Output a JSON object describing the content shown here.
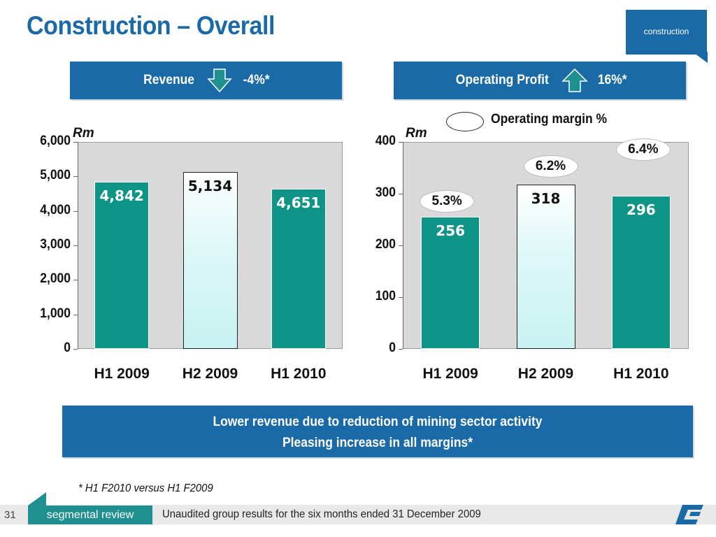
{
  "title": "Construction – Overall",
  "section_tag": "construction",
  "revenue_header": {
    "label": "Revenue",
    "change": "-4%*",
    "arrow_icon": "down-arrow-icon"
  },
  "op_header": {
    "label": "Operating Profit",
    "change": "16%*",
    "arrow_icon": "up-arrow-icon"
  },
  "legend": {
    "label": "Operating margin %"
  },
  "summary": {
    "line1": "Lower revenue due to reduction of mining sector activity",
    "line2": "Pleasing increase in all margins*"
  },
  "footnote": "* H1 F2010 versus H1 F2009",
  "footer": {
    "page": "31",
    "tab": "segmental review",
    "text": "Unaudited group results for the six months ended 31 December 2009"
  },
  "colors": {
    "brand_blue": "#1a6aa8",
    "teal": "#0f9488",
    "light_bar": "#dff8f8",
    "plot_bg": "#d9d9d9"
  },
  "chart_data": [
    {
      "type": "bar",
      "unit": "Rm",
      "categories": [
        "H1 2009",
        "H2 2009",
        "H1 2010"
      ],
      "values": [
        4842,
        5134,
        4651
      ],
      "data_labels": [
        "4,842",
        "5,134",
        "4,651"
      ],
      "ylim": [
        0,
        6000
      ],
      "yticks": [
        "0",
        "1,000",
        "2,000",
        "3,000",
        "4,000",
        "5,000",
        "6,000"
      ]
    },
    {
      "type": "bar",
      "unit": "Rm",
      "categories": [
        "H1 2009",
        "H2 2009",
        "H1 2010"
      ],
      "values": [
        256,
        318,
        296
      ],
      "data_labels": [
        "256",
        "318",
        "296"
      ],
      "margins": [
        "5.3%",
        "6.2%",
        "6.4%"
      ],
      "ylim": [
        0,
        400
      ],
      "yticks": [
        "0",
        "100",
        "200",
        "300",
        "400"
      ]
    }
  ]
}
